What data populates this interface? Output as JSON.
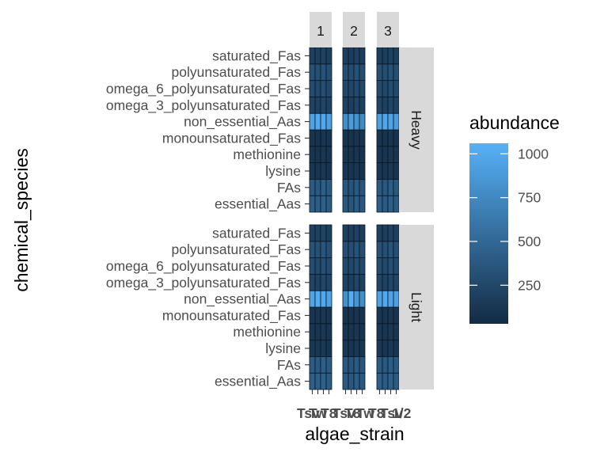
{
  "chart_data": {
    "type": "heatmap",
    "xlabel": "algae_strain",
    "ylabel": "chemical_species",
    "legend": {
      "title": "abundance",
      "ticks": [
        250,
        500,
        750,
        1000
      ],
      "range": [
        30,
        1060
      ],
      "color_low": "#132b43",
      "color_high": "#56b1f7",
      "placement": "right"
    },
    "col_facets": [
      "1",
      "2",
      "3"
    ],
    "row_facets": [
      "Heavy",
      "Light"
    ],
    "x_categories": [
      "Tsv",
      "T8",
      "Tw",
      "T2"
    ],
    "x_tick_labels_overprinted": [
      "Tsv",
      "Tw",
      "T8",
      "Tsv",
      "T8",
      "Tw",
      "T8",
      "Tsv",
      "1/2"
    ],
    "y_categories": [
      "essential_Aas",
      "FAs",
      "lysine",
      "methionine",
      "monounsaturated_Fas",
      "non_essential_Aas",
      "omega_3_polyunsaturated_Fas",
      "omega_6_polyunsaturated_Fas",
      "polyunsaturated_Fas",
      "saturated_Fas"
    ],
    "panels": [
      {
        "row": "Heavy",
        "col": "1",
        "values": [
          [
            430,
            420,
            440,
            400
          ],
          [
            400,
            380,
            420,
            390
          ],
          [
            120,
            110,
            130,
            100
          ],
          [
            110,
            100,
            120,
            100
          ],
          [
            100,
            90,
            110,
            95
          ],
          [
            950,
            1000,
            980,
            920
          ],
          [
            220,
            200,
            240,
            210
          ],
          [
            280,
            260,
            300,
            270
          ],
          [
            330,
            310,
            340,
            300
          ],
          [
            200,
            190,
            210,
            180
          ]
        ]
      },
      {
        "row": "Heavy",
        "col": "2",
        "values": [
          [
            380,
            360,
            400,
            370
          ],
          [
            360,
            340,
            380,
            350
          ],
          [
            110,
            100,
            120,
            95
          ],
          [
            100,
            95,
            110,
            90
          ],
          [
            95,
            85,
            100,
            90
          ],
          [
            780,
            900,
            820,
            760
          ],
          [
            200,
            180,
            220,
            190
          ],
          [
            250,
            240,
            270,
            250
          ],
          [
            300,
            290,
            320,
            290
          ],
          [
            180,
            170,
            190,
            170
          ]
        ]
      },
      {
        "row": "Heavy",
        "col": "3",
        "values": [
          [
            420,
            400,
            430,
            390
          ],
          [
            390,
            370,
            410,
            380
          ],
          [
            120,
            110,
            130,
            100
          ],
          [
            110,
            100,
            120,
            100
          ],
          [
            100,
            90,
            110,
            95
          ],
          [
            920,
            980,
            960,
            900
          ],
          [
            220,
            200,
            230,
            210
          ],
          [
            270,
            250,
            290,
            260
          ],
          [
            320,
            300,
            330,
            300
          ],
          [
            190,
            180,
            200,
            180
          ]
        ]
      },
      {
        "row": "Light",
        "col": "1",
        "values": [
          [
            440,
            430,
            450,
            410
          ],
          [
            410,
            390,
            430,
            400
          ],
          [
            130,
            120,
            140,
            110
          ],
          [
            120,
            110,
            130,
            110
          ],
          [
            110,
            100,
            120,
            100
          ],
          [
            970,
            1020,
            990,
            940
          ],
          [
            230,
            210,
            250,
            220
          ],
          [
            290,
            270,
            310,
            280
          ],
          [
            340,
            320,
            350,
            310
          ],
          [
            210,
            200,
            220,
            190
          ]
        ]
      },
      {
        "row": "Light",
        "col": "2",
        "values": [
          [
            390,
            370,
            410,
            380
          ],
          [
            370,
            350,
            390,
            360
          ],
          [
            120,
            110,
            130,
            100
          ],
          [
            110,
            100,
            120,
            95
          ],
          [
            100,
            90,
            105,
            95
          ],
          [
            800,
            1040,
            850,
            780
          ],
          [
            210,
            190,
            230,
            200
          ],
          [
            260,
            250,
            280,
            260
          ],
          [
            310,
            300,
            330,
            300
          ],
          [
            190,
            180,
            200,
            180
          ]
        ]
      },
      {
        "row": "Light",
        "col": "3",
        "values": [
          [
            430,
            410,
            440,
            400
          ],
          [
            400,
            380,
            420,
            390
          ],
          [
            130,
            120,
            140,
            110
          ],
          [
            120,
            110,
            130,
            105
          ],
          [
            110,
            100,
            115,
            100
          ],
          [
            940,
            1000,
            970,
            920
          ],
          [
            230,
            210,
            240,
            220
          ],
          [
            280,
            260,
            300,
            270
          ],
          [
            330,
            310,
            340,
            310
          ],
          [
            200,
            190,
            210,
            190
          ]
        ]
      }
    ]
  }
}
